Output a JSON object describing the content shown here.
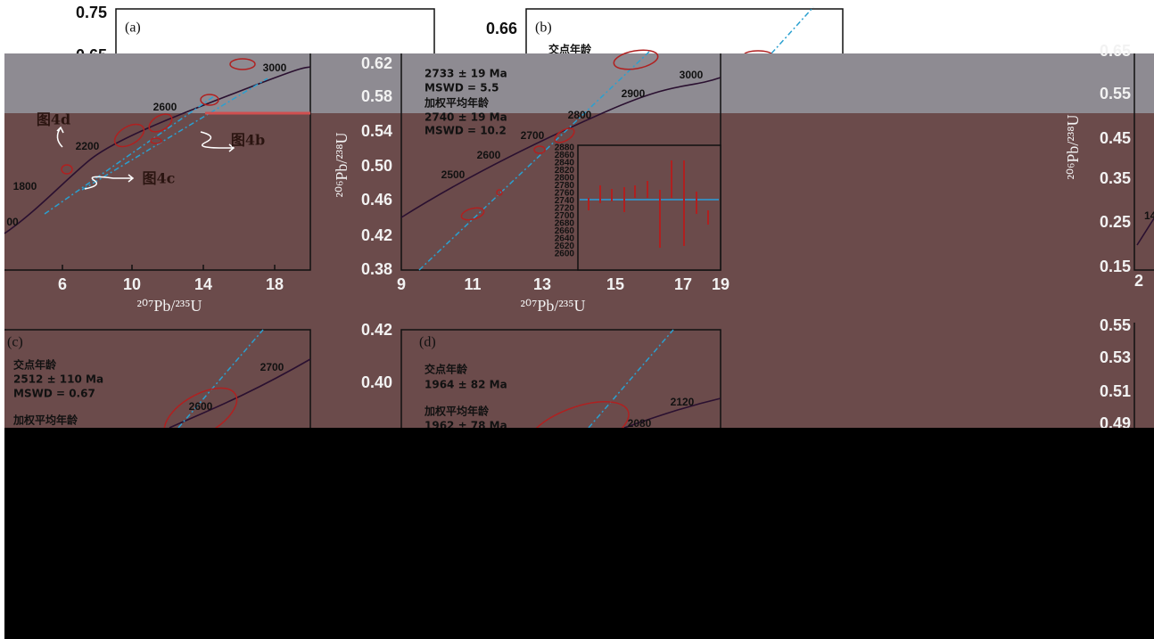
{
  "panel_a": {
    "label": "(a)",
    "y_ticks": [
      "0.75",
      "0.65"
    ],
    "x_ticks": [
      "6",
      "10",
      "14",
      "18"
    ],
    "x_axis_label": "²⁰⁷Pb/²³⁵U",
    "concordia_ages": [
      "3000",
      "2600",
      "2200",
      "1800",
      "00"
    ],
    "callouts": [
      "图4d",
      "图4b",
      "图4c"
    ]
  },
  "panel_b": {
    "label": "(b)",
    "y_ticks": [
      "0.66",
      "0.62",
      "0.58",
      "0.54",
      "0.50",
      "0.46",
      "0.42",
      "0.38"
    ],
    "x_ticks": [
      "9",
      "11",
      "13",
      "15",
      "17",
      "19"
    ],
    "x_axis_label": "²⁰⁷Pb/²³⁵U",
    "y_axis_label": "²⁰⁶Pb/²³⁸U",
    "intercept_title": "交点年龄",
    "intercept_age": "2733 ± 19 Ma",
    "intercept_mswd": "MSWD = 5.5",
    "weighted_title": "加权平均年龄",
    "weighted_age": "2740 ± 19 Ma",
    "weighted_mswd": "MSWD = 10.2",
    "concordia_ages": [
      "3000",
      "2900",
      "2800",
      "2700",
      "2600",
      "2500"
    ],
    "inset_y_ticks": [
      "2880",
      "2860",
      "2840",
      "2820",
      "2800",
      "2780",
      "2760",
      "2740",
      "2720",
      "2700",
      "2680",
      "2660",
      "2640",
      "2620",
      "2600"
    ]
  },
  "panel_c": {
    "label": "(c)",
    "intercept_title": "交点年龄",
    "intercept_age": "2512 ± 110 Ma",
    "intercept_mswd": "MSWD = 0.67",
    "weighted_title": "加权平均年龄",
    "concordia_ages": [
      "2700",
      "2600"
    ]
  },
  "panel_d": {
    "label": "(d)",
    "y_ticks": [
      "0.42",
      "0.40"
    ],
    "intercept_title": "交点年龄",
    "intercept_age": "1964 ± 82 Ma",
    "weighted_title": "加权平均年龄",
    "weighted_age": "1962 ± 78 Ma",
    "concordia_ages": [
      "2120",
      "2080"
    ]
  },
  "panel_e": {
    "y_ticks_top": [
      "0.65",
      "0.55",
      "0.45",
      "0.35",
      "0.25",
      "0.15"
    ],
    "x_ticks": [
      "2"
    ],
    "y_axis_label": "²⁰⁶Pb/²³⁸U",
    "concordia_ages": [
      "14"
    ],
    "y_ticks_bottom": [
      "0.55",
      "0.53",
      "0.51",
      "0.49"
    ]
  }
}
